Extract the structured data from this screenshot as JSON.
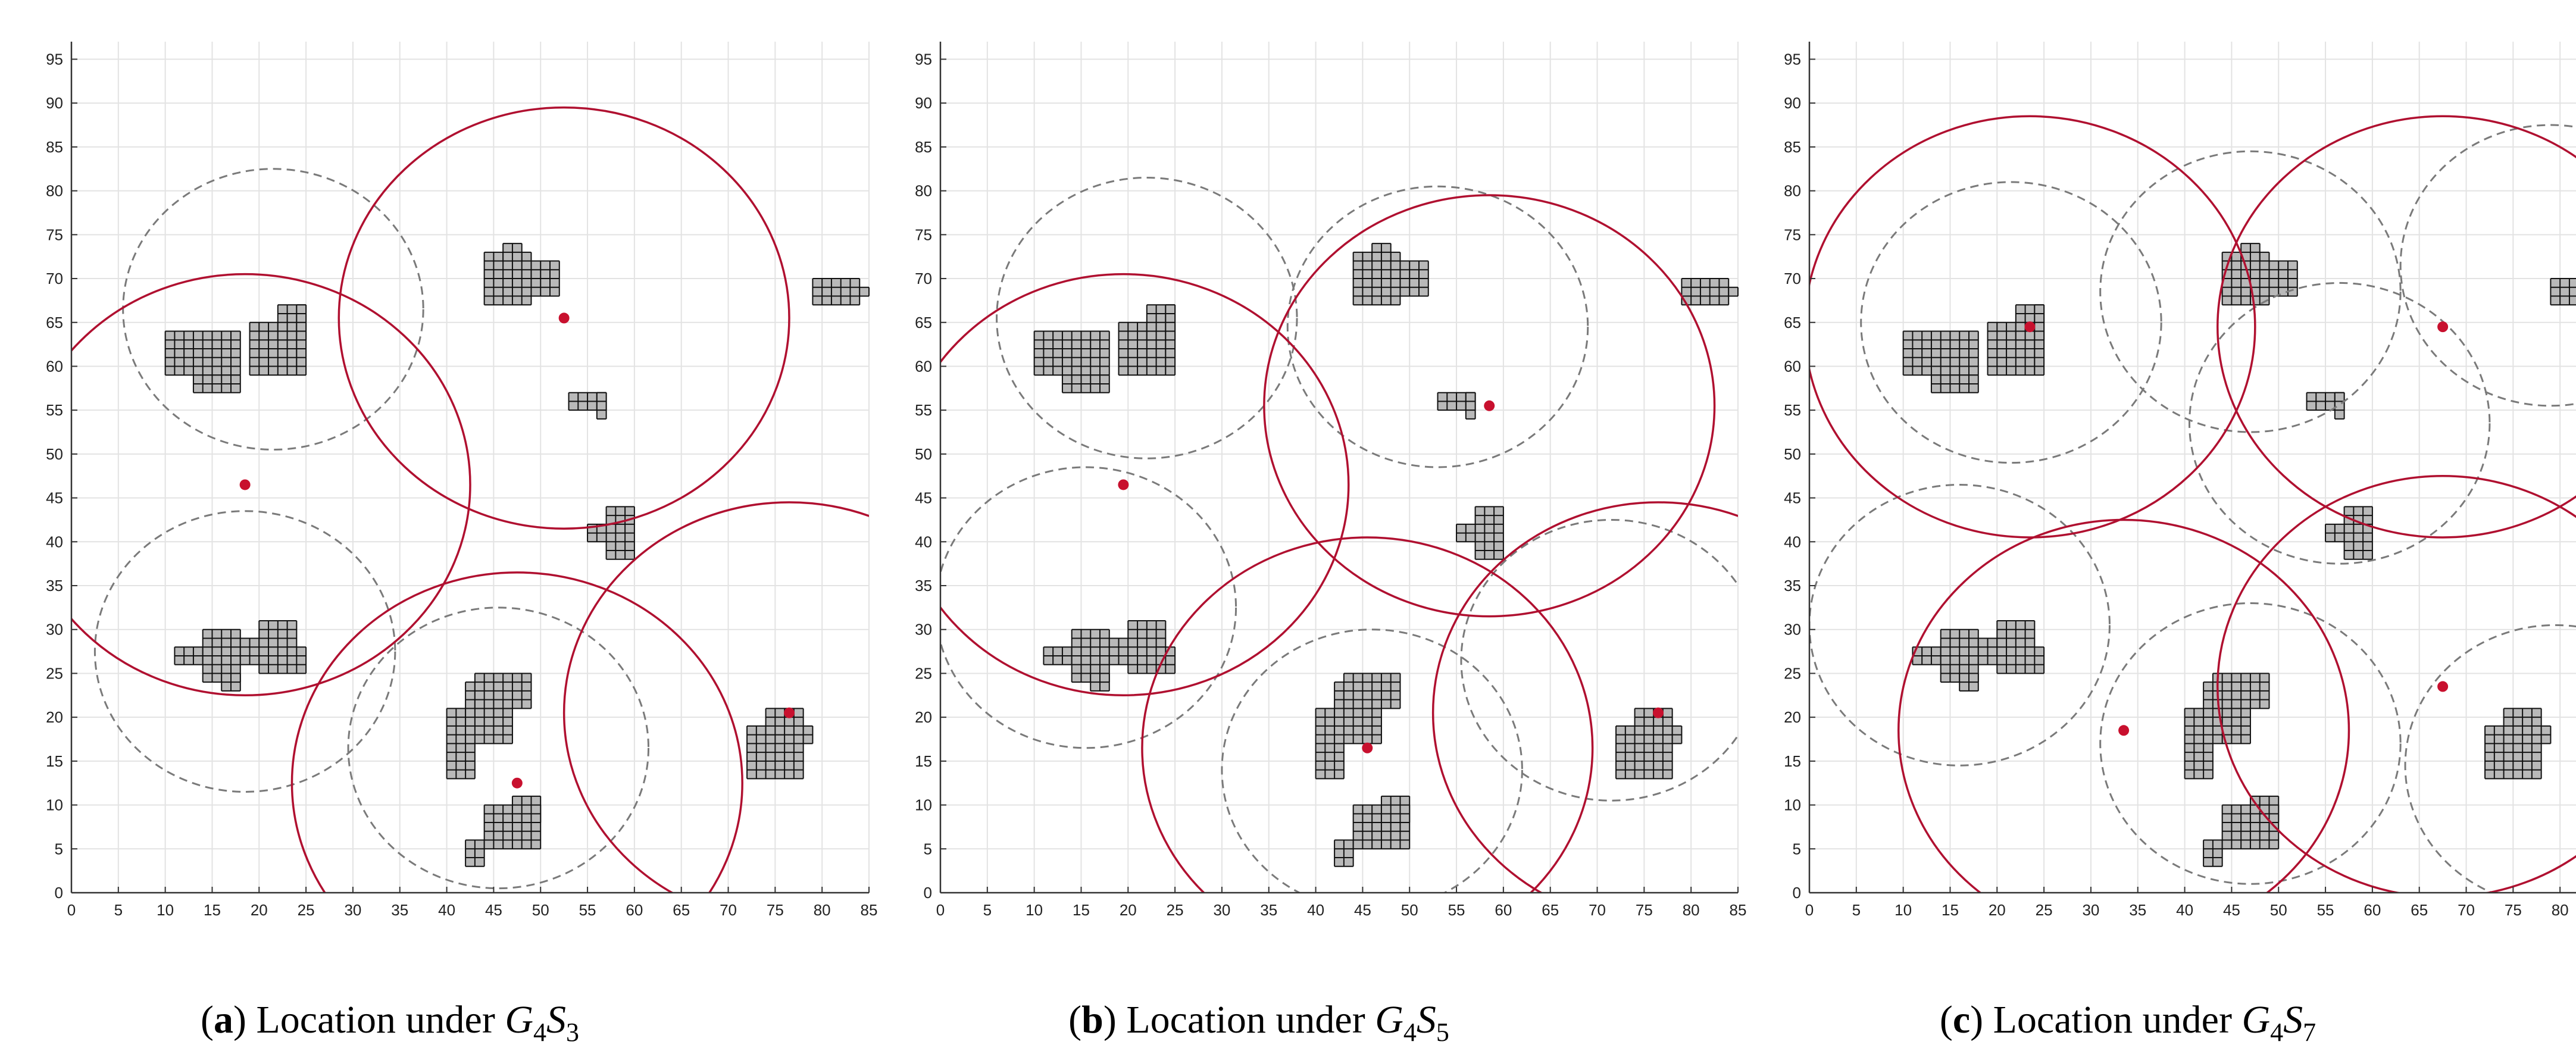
{
  "colors": {
    "ring_solid": "#b01030",
    "ring_dashed": "#7a7a7a",
    "dot": "#c8102e",
    "obstacle_fill": "#b9b9b9",
    "grid_edge": "#111111",
    "gridline": "#e3e3e3"
  },
  "axes": {
    "x_ticks": [
      0,
      5,
      10,
      15,
      20,
      25,
      30,
      35,
      40,
      45,
      50,
      55,
      60,
      65,
      70,
      75,
      80,
      85
    ],
    "y_ticks": [
      0,
      5,
      10,
      15,
      20,
      25,
      30,
      35,
      40,
      45,
      50,
      55,
      60,
      65,
      70,
      75,
      80,
      85,
      90,
      95
    ],
    "xlim": [
      0,
      85
    ],
    "ylim": [
      0,
      97
    ]
  },
  "obstacles": [
    {
      "id": "A",
      "cells": [
        [
          10,
          59,
          8,
          5
        ],
        [
          13,
          57,
          5,
          2
        ],
        [
          19,
          59,
          5,
          6
        ],
        [
          22,
          63,
          3,
          4
        ],
        [
          24,
          59,
          1,
          8
        ]
      ]
    },
    {
      "id": "B",
      "cells": [
        [
          44,
          67,
          5,
          6
        ],
        [
          46,
          72,
          2,
          2
        ],
        [
          49,
          68,
          3,
          4
        ]
      ]
    },
    {
      "id": "C",
      "cells": [
        [
          79,
          67,
          5,
          3
        ],
        [
          84,
          68,
          1,
          1
        ]
      ]
    },
    {
      "id": "D",
      "cells": [
        [
          53,
          55,
          4,
          2
        ],
        [
          56,
          54,
          1,
          3
        ]
      ]
    },
    {
      "id": "E",
      "cells": [
        [
          57,
          38,
          3,
          6
        ],
        [
          55,
          40,
          2,
          2
        ]
      ]
    },
    {
      "id": "F",
      "cells": [
        [
          11,
          26,
          6,
          2
        ],
        [
          14,
          24,
          4,
          6
        ],
        [
          16,
          23,
          2,
          2
        ],
        [
          18,
          26,
          2,
          3
        ],
        [
          20,
          25,
          4,
          6
        ],
        [
          23,
          25,
          2,
          3
        ]
      ]
    },
    {
      "id": "G",
      "cells": [
        [
          40,
          13,
          3,
          8
        ],
        [
          42,
          17,
          5,
          7
        ],
        [
          43,
          21,
          6,
          4
        ]
      ]
    },
    {
      "id": "H",
      "cells": [
        [
          42,
          3,
          2,
          3
        ],
        [
          44,
          5,
          6,
          5
        ],
        [
          47,
          8,
          3,
          3
        ]
      ]
    },
    {
      "id": "I",
      "cells": [
        [
          72,
          13,
          6,
          6
        ],
        [
          74,
          18,
          4,
          3
        ],
        [
          78,
          17,
          1,
          2
        ]
      ]
    }
  ],
  "chart_data": [
    {
      "type": "scatter",
      "xlim": [
        0,
        85
      ],
      "ylim": [
        0,
        97
      ],
      "grid": true,
      "points": [
        {
          "x": 52.5,
          "y": 65.5
        },
        {
          "x": 18.5,
          "y": 46.5
        },
        {
          "x": 47.5,
          "y": 12.5
        },
        {
          "x": 76.5,
          "y": 20.5
        }
      ],
      "solid_circles": [
        {
          "cx": 52.5,
          "cy": 65.5,
          "r": 24
        },
        {
          "cx": 18.5,
          "cy": 46.5,
          "r": 24
        },
        {
          "cx": 47.5,
          "cy": 12.5,
          "r": 24
        },
        {
          "cx": 76.5,
          "cy": 20.5,
          "r": 24
        }
      ],
      "dashed_circles": [
        {
          "cx": 21.5,
          "cy": 66.5,
          "r": 16
        },
        {
          "cx": 18.5,
          "cy": 27.5,
          "r": 16
        },
        {
          "cx": 45.5,
          "cy": 16.5,
          "r": 16
        }
      ]
    },
    {
      "type": "scatter",
      "xlim": [
        0,
        85
      ],
      "ylim": [
        0,
        97
      ],
      "grid": true,
      "points": [
        {
          "x": 19.5,
          "y": 46.5
        },
        {
          "x": 58.5,
          "y": 55.5
        },
        {
          "x": 45.5,
          "y": 16.5
        },
        {
          "x": 76.5,
          "y": 20.5
        }
      ],
      "solid_circles": [
        {
          "cx": 19.5,
          "cy": 46.5,
          "r": 24
        },
        {
          "cx": 58.5,
          "cy": 55.5,
          "r": 24
        },
        {
          "cx": 45.5,
          "cy": 16.5,
          "r": 24
        },
        {
          "cx": 76.5,
          "cy": 20.5,
          "r": 24
        }
      ],
      "dashed_circles": [
        {
          "cx": 22,
          "cy": 65.5,
          "r": 16
        },
        {
          "cx": 53,
          "cy": 64.5,
          "r": 16
        },
        {
          "cx": 15.5,
          "cy": 32.5,
          "r": 16
        },
        {
          "cx": 46,
          "cy": 14,
          "r": 16
        },
        {
          "cx": 71.5,
          "cy": 26.5,
          "r": 16
        }
      ]
    },
    {
      "type": "scatter",
      "xlim": [
        0,
        85
      ],
      "ylim": [
        0,
        97
      ],
      "grid": true,
      "points": [
        {
          "x": 23.5,
          "y": 64.5
        },
        {
          "x": 67.5,
          "y": 64.5
        },
        {
          "x": 33.5,
          "y": 18.5
        },
        {
          "x": 67.5,
          "y": 23.5
        }
      ],
      "solid_circles": [
        {
          "cx": 23.5,
          "cy": 64.5,
          "r": 24
        },
        {
          "cx": 67.5,
          "cy": 64.5,
          "r": 24
        },
        {
          "cx": 33.5,
          "cy": 18.5,
          "r": 24
        },
        {
          "cx": 67.5,
          "cy": 23.5,
          "r": 24
        }
      ],
      "dashed_circles": [
        {
          "cx": 21.5,
          "cy": 65,
          "r": 16
        },
        {
          "cx": 47,
          "cy": 68.5,
          "r": 16
        },
        {
          "cx": 79,
          "cy": 71.5,
          "r": 16
        },
        {
          "cx": 56.5,
          "cy": 53.5,
          "r": 16
        },
        {
          "cx": 16,
          "cy": 30.5,
          "r": 16
        },
        {
          "cx": 47,
          "cy": 17,
          "r": 16
        },
        {
          "cx": 79.5,
          "cy": 14.5,
          "r": 16
        }
      ]
    }
  ],
  "captions": [
    {
      "label": "a",
      "text": " Location under ",
      "G": "G",
      "Gsub": "4",
      "S": "S",
      "Ssub": "3"
    },
    {
      "label": "b",
      "text": " Location under ",
      "G": "G",
      "Gsub": "4",
      "S": "S",
      "Ssub": "5"
    },
    {
      "label": "c",
      "text": " Location under ",
      "G": "G",
      "Gsub": "4",
      "S": "S",
      "Ssub": "7"
    }
  ]
}
